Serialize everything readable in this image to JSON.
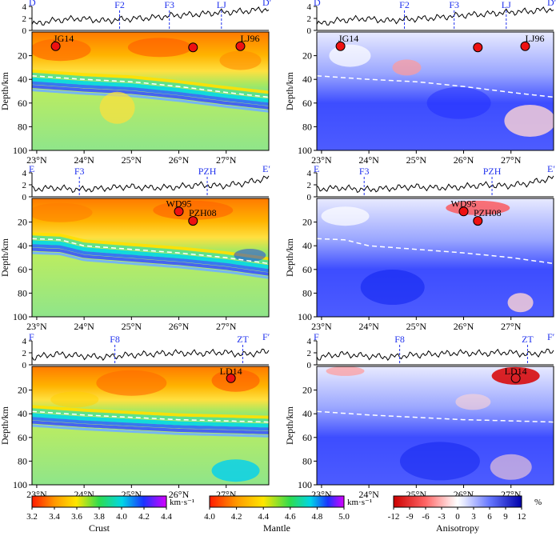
{
  "chart_data": {
    "type": "heatmap",
    "title": "",
    "x_axis": {
      "unit": "°N",
      "range": [
        22.9,
        27.9
      ],
      "ticks": [
        23,
        24,
        25,
        26,
        27
      ],
      "tick_labels": [
        "23°N",
        "24°N",
        "25°N",
        "26°N",
        "27°N"
      ]
    },
    "depth_axis": {
      "label": "Depth/km",
      "range": [
        0,
        100
      ],
      "ticks": [
        20,
        40,
        60,
        80,
        100
      ],
      "tick_labels": [
        "20",
        "40",
        "60",
        "80",
        "100"
      ]
    },
    "topo_axis": {
      "range": [
        0,
        4
      ],
      "ticks": [
        0,
        2,
        4
      ],
      "tick_labels": [
        "0",
        "2",
        "4"
      ]
    },
    "profiles": [
      {
        "id": "D",
        "start_label": "D",
        "end_label": "D′",
        "faults": [
          {
            "label": "F2",
            "lat": 24.75
          },
          {
            "label": "F3",
            "lat": 25.8
          },
          {
            "label": "LJ",
            "lat": 26.9
          }
        ],
        "stations": [
          {
            "label": "JG14",
            "lat": 23.4,
            "depth": 12
          },
          {
            "label": "",
            "lat": 26.3,
            "depth": 13
          },
          {
            "label": "LJ96",
            "lat": 27.3,
            "depth": 12
          }
        ],
        "moho_depth": {
          "lat": [
            22.9,
            24,
            25,
            26,
            27,
            27.9
          ],
          "depth": [
            37,
            40,
            42,
            46,
            51,
            55
          ]
        },
        "topography": {
          "lat": [
            22.9,
            23.4,
            23.9,
            24.4,
            24.9,
            25.4,
            25.9,
            26.4,
            26.9,
            27.4,
            27.9
          ],
          "elevation": [
            1.0,
            1.7,
            2.0,
            1.6,
            1.9,
            2.1,
            2.5,
            2.7,
            3.0,
            3.2,
            3.6
          ]
        }
      },
      {
        "id": "E",
        "start_label": "E",
        "end_label": "E′",
        "faults": [
          {
            "label": "F3",
            "lat": 23.9
          },
          {
            "label": "PZH",
            "lat": 26.6
          }
        ],
        "stations": [
          {
            "label": "WD95",
            "lat": 26.0,
            "depth": 11
          },
          {
            "label": "PZH08",
            "lat": 26.3,
            "depth": 19
          }
        ],
        "moho_depth": {
          "lat": [
            22.9,
            23.5,
            24,
            25,
            26,
            27,
            27.9
          ],
          "depth": [
            34,
            35,
            40,
            43,
            46,
            50,
            55
          ]
        },
        "topography": {
          "lat": [
            22.9,
            23.4,
            23.9,
            24.4,
            24.9,
            25.4,
            25.9,
            26.4,
            26.9,
            27.4,
            27.9
          ],
          "elevation": [
            1.3,
            1.5,
            1.2,
            1.4,
            1.7,
            1.5,
            1.6,
            2.0,
            1.8,
            2.3,
            3.2
          ]
        }
      },
      {
        "id": "F",
        "start_label": "F",
        "end_label": "F′",
        "faults": [
          {
            "label": "F8",
            "lat": 24.65
          },
          {
            "label": "ZT",
            "lat": 27.35
          }
        ],
        "stations": [
          {
            "label": "LD14",
            "lat": 27.1,
            "depth": 10
          }
        ],
        "moho_depth": {
          "lat": [
            22.9,
            24,
            25,
            26,
            27,
            27.9
          ],
          "depth": [
            38,
            41,
            43,
            45,
            46,
            47
          ]
        },
        "topography": {
          "lat": [
            22.9,
            23.4,
            23.9,
            24.4,
            24.9,
            25.4,
            25.9,
            26.4,
            26.9,
            27.4,
            27.9
          ],
          "elevation": [
            1.2,
            1.8,
            1.5,
            1.3,
            1.6,
            1.8,
            2.0,
            1.9,
            2.1,
            1.7,
            2.3
          ]
        }
      }
    ],
    "panels": [
      {
        "profile": "D",
        "quantity": "velocity"
      },
      {
        "profile": "D",
        "quantity": "anisotropy"
      },
      {
        "profile": "E",
        "quantity": "velocity"
      },
      {
        "profile": "E",
        "quantity": "anisotropy"
      },
      {
        "profile": "F",
        "quantity": "velocity"
      },
      {
        "profile": "F",
        "quantity": "anisotropy"
      }
    ],
    "colorbars": [
      {
        "name": "crust",
        "title": "Crust",
        "unit": "km·s⁻¹",
        "range": [
          3.2,
          4.4
        ],
        "ticks": [
          "3.2",
          "3.4",
          "3.6",
          "3.8",
          "4.0",
          "4.2",
          "4.4"
        ]
      },
      {
        "name": "mantle",
        "title": "Mantle",
        "unit": "km·s⁻¹",
        "range": [
          4.0,
          5.0
        ],
        "ticks": [
          "4.0",
          "4.2",
          "4.4",
          "4.6",
          "4.8",
          "5.0"
        ]
      },
      {
        "name": "anisotropy",
        "title": "Anisotropy",
        "unit": "%",
        "range": [
          -12,
          12
        ],
        "ticks": [
          "-12",
          "-9",
          "-6",
          "-3",
          "0",
          "3",
          "6",
          "9",
          "12"
        ]
      }
    ]
  },
  "colors": {
    "fault_line": "#2233ee",
    "station_fill": "#ee1111",
    "moho_line": "#ffffff"
  }
}
